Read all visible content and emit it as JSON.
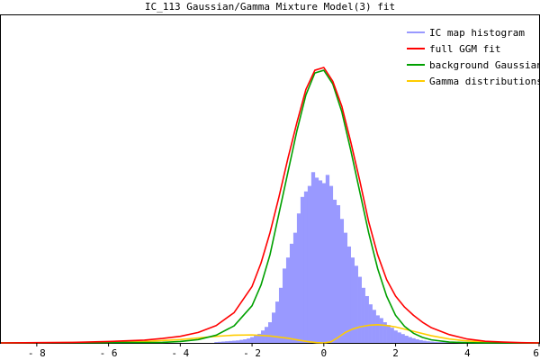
{
  "chart_data": {
    "type": "area",
    "title": "IC_113 Gaussian/Gamma Mixture Model(3) fit",
    "xlabel": "",
    "ylabel": "",
    "xlim": [
      -9,
      6
    ],
    "ylim": [
      0,
      1
    ],
    "x_ticks": [
      -8,
      -6,
      -4,
      -2,
      0,
      2,
      4,
      6
    ],
    "x_tick_labels": [
      "- 8",
      "- 6",
      "- 4",
      "- 2",
      "0",
      "2",
      "4",
      "6"
    ],
    "grid": false,
    "legend_position": "top-right",
    "histogram": {
      "name": "IC map histogram",
      "color": "#9999ff",
      "bin_width": 0.1,
      "bins": [
        {
          "x": -3.0,
          "y": 0.003
        },
        {
          "x": -2.9,
          "y": 0.004
        },
        {
          "x": -2.8,
          "y": 0.005
        },
        {
          "x": -2.7,
          "y": 0.006
        },
        {
          "x": -2.6,
          "y": 0.007
        },
        {
          "x": -2.5,
          "y": 0.008
        },
        {
          "x": -2.4,
          "y": 0.009
        },
        {
          "x": -2.3,
          "y": 0.011
        },
        {
          "x": -2.2,
          "y": 0.013
        },
        {
          "x": -2.1,
          "y": 0.016
        },
        {
          "x": -2.0,
          "y": 0.021
        },
        {
          "x": -1.9,
          "y": 0.026
        },
        {
          "x": -1.8,
          "y": 0.033
        },
        {
          "x": -1.7,
          "y": 0.045
        },
        {
          "x": -1.6,
          "y": 0.058
        },
        {
          "x": -1.5,
          "y": 0.075
        },
        {
          "x": -1.4,
          "y": 0.11
        },
        {
          "x": -1.3,
          "y": 0.15
        },
        {
          "x": -1.2,
          "y": 0.2
        },
        {
          "x": -1.1,
          "y": 0.27
        },
        {
          "x": -1.0,
          "y": 0.31
        },
        {
          "x": -0.9,
          "y": 0.36
        },
        {
          "x": -0.8,
          "y": 0.4
        },
        {
          "x": -0.7,
          "y": 0.47
        },
        {
          "x": -0.6,
          "y": 0.53
        },
        {
          "x": -0.5,
          "y": 0.55
        },
        {
          "x": -0.4,
          "y": 0.57
        },
        {
          "x": -0.3,
          "y": 0.62
        },
        {
          "x": -0.2,
          "y": 0.6
        },
        {
          "x": -0.1,
          "y": 0.59
        },
        {
          "x": 0.0,
          "y": 0.58
        },
        {
          "x": 0.1,
          "y": 0.61
        },
        {
          "x": 0.2,
          "y": 0.57
        },
        {
          "x": 0.3,
          "y": 0.52
        },
        {
          "x": 0.4,
          "y": 0.5
        },
        {
          "x": 0.5,
          "y": 0.45
        },
        {
          "x": 0.6,
          "y": 0.4
        },
        {
          "x": 0.7,
          "y": 0.35
        },
        {
          "x": 0.8,
          "y": 0.31
        },
        {
          "x": 0.9,
          "y": 0.28
        },
        {
          "x": 1.0,
          "y": 0.24
        },
        {
          "x": 1.1,
          "y": 0.2
        },
        {
          "x": 1.2,
          "y": 0.17
        },
        {
          "x": 1.3,
          "y": 0.14
        },
        {
          "x": 1.4,
          "y": 0.12
        },
        {
          "x": 1.5,
          "y": 0.1
        },
        {
          "x": 1.6,
          "y": 0.09
        },
        {
          "x": 1.7,
          "y": 0.075
        },
        {
          "x": 1.8,
          "y": 0.065
        },
        {
          "x": 1.9,
          "y": 0.055
        },
        {
          "x": 2.0,
          "y": 0.045
        },
        {
          "x": 2.1,
          "y": 0.038
        },
        {
          "x": 2.2,
          "y": 0.032
        },
        {
          "x": 2.3,
          "y": 0.026
        },
        {
          "x": 2.4,
          "y": 0.021
        },
        {
          "x": 2.5,
          "y": 0.017
        },
        {
          "x": 2.6,
          "y": 0.013
        },
        {
          "x": 2.7,
          "y": 0.01
        },
        {
          "x": 2.8,
          "y": 0.008
        },
        {
          "x": 2.9,
          "y": 0.006
        },
        {
          "x": 3.0,
          "y": 0.005
        },
        {
          "x": 3.1,
          "y": 0.004
        },
        {
          "x": 3.2,
          "y": 0.003
        },
        {
          "x": 3.3,
          "y": 0.003
        },
        {
          "x": 3.4,
          "y": 0.002
        },
        {
          "x": 3.5,
          "y": 0.002
        }
      ]
    },
    "series": [
      {
        "name": "full GGM fit",
        "color": "#ff0000",
        "x": [
          -9.0,
          -8.0,
          -7.0,
          -6.0,
          -5.0,
          -4.5,
          -4.0,
          -3.5,
          -3.0,
          -2.5,
          -2.0,
          -1.75,
          -1.5,
          -1.25,
          -1.0,
          -0.75,
          -0.5,
          -0.25,
          0.0,
          0.25,
          0.5,
          0.75,
          1.0,
          1.25,
          1.5,
          1.75,
          2.0,
          2.25,
          2.5,
          2.75,
          3.0,
          3.5,
          4.0,
          4.5,
          5.0,
          5.5,
          6.0
        ],
        "y": [
          0.0,
          0.001,
          0.002,
          0.005,
          0.01,
          0.016,
          0.024,
          0.038,
          0.063,
          0.11,
          0.205,
          0.29,
          0.4,
          0.53,
          0.67,
          0.8,
          0.92,
          0.99,
          1.0,
          0.95,
          0.86,
          0.73,
          0.59,
          0.44,
          0.32,
          0.23,
          0.17,
          0.13,
          0.1,
          0.075,
          0.055,
          0.03,
          0.014,
          0.006,
          0.003,
          0.001,
          0.0
        ]
      },
      {
        "name": "background Gaussian",
        "color": "#00a000",
        "x": [
          -9.0,
          -4.5,
          -4.0,
          -3.5,
          -3.0,
          -2.5,
          -2.0,
          -1.75,
          -1.5,
          -1.25,
          -1.0,
          -0.75,
          -0.5,
          -0.25,
          0.0,
          0.25,
          0.5,
          0.75,
          1.0,
          1.25,
          1.5,
          1.75,
          2.0,
          2.25,
          2.5,
          2.75,
          3.0,
          3.5,
          4.0,
          4.5,
          5.0,
          6.0
        ],
        "y": [
          0.0,
          0.002,
          0.005,
          0.012,
          0.028,
          0.062,
          0.135,
          0.21,
          0.32,
          0.47,
          0.62,
          0.77,
          0.9,
          0.98,
          0.99,
          0.94,
          0.84,
          0.7,
          0.55,
          0.4,
          0.27,
          0.17,
          0.1,
          0.06,
          0.035,
          0.02,
          0.011,
          0.003,
          0.001,
          0.0,
          0.0,
          0.0
        ]
      },
      {
        "name": "Gamma distributions",
        "color": "#ffcc00",
        "x": [
          -9.0,
          -6.0,
          -5.0,
          -4.0,
          -3.5,
          -3.0,
          -2.5,
          -2.0,
          -1.5,
          -1.0,
          -0.7,
          -0.4,
          -0.2,
          0.0,
          0.2,
          0.4,
          0.6,
          0.8,
          1.0,
          1.25,
          1.5,
          1.75,
          2.0,
          2.5,
          3.0,
          3.5,
          4.0,
          4.5,
          5.0,
          6.0
        ],
        "y": [
          0.0,
          0.002,
          0.005,
          0.012,
          0.018,
          0.024,
          0.028,
          0.029,
          0.025,
          0.017,
          0.01,
          0.004,
          0.001,
          0.0,
          0.004,
          0.02,
          0.038,
          0.05,
          0.058,
          0.064,
          0.066,
          0.063,
          0.058,
          0.042,
          0.026,
          0.014,
          0.007,
          0.003,
          0.001,
          0.0
        ]
      }
    ]
  }
}
